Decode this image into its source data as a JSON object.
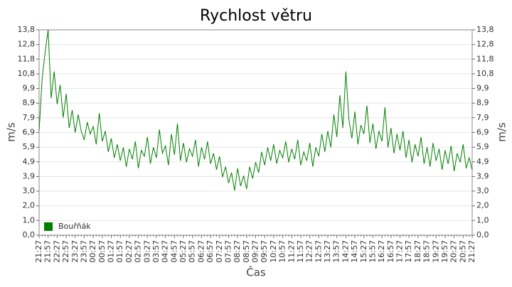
{
  "chart_data": {
    "type": "line",
    "title": "Rychlost větru",
    "x_label": "Čas",
    "y_label": "m/s",
    "ylim": [
      0,
      13.8
    ],
    "yticks": [
      {
        "value": 0,
        "label": "0,0"
      },
      {
        "value": 0.99,
        "label": "1,0"
      },
      {
        "value": 1.97,
        "label": "2,0"
      },
      {
        "value": 2.96,
        "label": "3,0"
      },
      {
        "value": 3.94,
        "label": "3,9"
      },
      {
        "value": 4.93,
        "label": "4,9"
      },
      {
        "value": 5.91,
        "label": "5,9"
      },
      {
        "value": 6.9,
        "label": "6,9"
      },
      {
        "value": 7.89,
        "label": "7,9"
      },
      {
        "value": 8.87,
        "label": "8,9"
      },
      {
        "value": 9.86,
        "label": "9,9"
      },
      {
        "value": 10.84,
        "label": "10,8"
      },
      {
        "value": 11.83,
        "label": "11,8"
      },
      {
        "value": 12.81,
        "label": "12,8"
      },
      {
        "value": 13.8,
        "label": "13,8"
      }
    ],
    "grid": true,
    "legend": "lower left",
    "categories": [
      "21:27",
      null,
      null,
      "21:57",
      null,
      null,
      "22:27",
      null,
      null,
      "22:57",
      null,
      null,
      "23:27",
      null,
      null,
      "23:57",
      null,
      null,
      "00:27",
      null,
      null,
      "00:57",
      null,
      null,
      "01:27",
      null,
      null,
      "01:57",
      null,
      null,
      "02:27",
      null,
      null,
      "02:57",
      null,
      null,
      "03:27",
      null,
      null,
      "03:57",
      null,
      null,
      "04:27",
      null,
      null,
      "04:57",
      null,
      null,
      "05:27",
      null,
      null,
      "05:57",
      null,
      null,
      "06:27",
      null,
      null,
      "06:57",
      null,
      null,
      "07:27",
      null,
      null,
      "07:57",
      null,
      null,
      "08:27",
      null,
      null,
      "08:57",
      null,
      null,
      "09:27",
      null,
      null,
      "09:57",
      null,
      null,
      "10:27",
      null,
      null,
      "10:57",
      null,
      null,
      "11:27",
      null,
      null,
      "11:57",
      null,
      null,
      "12:27",
      null,
      null,
      "12:57",
      null,
      null,
      "13:27",
      null,
      null,
      "13:57",
      null,
      null,
      "14:27",
      null,
      null,
      "14:57",
      null,
      null,
      "15:27",
      null,
      null,
      "15:57",
      null,
      null,
      "16:27",
      null,
      null,
      "16:57",
      null,
      null,
      "17:27",
      null,
      null,
      "17:57",
      null,
      null,
      "18:27",
      null,
      null,
      "18:57",
      null,
      null,
      "19:27",
      null,
      null,
      "19:57",
      null,
      null,
      "20:27",
      null,
      null,
      "20:57",
      null,
      null,
      "21:27"
    ],
    "series": [
      {
        "name": "Bouřňák",
        "color": "#008000",
        "values": [
          7.0,
          10.5,
          12.3,
          13.8,
          9.2,
          11.0,
          8.8,
          10.1,
          7.9,
          9.5,
          7.2,
          8.4,
          6.9,
          8.1,
          7.0,
          6.4,
          7.6,
          6.8,
          7.3,
          6.1,
          8.2,
          6.3,
          7.0,
          5.6,
          6.5,
          5.2,
          6.1,
          5.0,
          5.9,
          4.6,
          5.8,
          5.1,
          6.3,
          4.5,
          5.7,
          5.3,
          6.6,
          4.8,
          5.9,
          5.2,
          7.1,
          5.5,
          6.0,
          4.7,
          6.8,
          5.4,
          7.5,
          5.0,
          6.2,
          4.9,
          5.8,
          5.3,
          6.4,
          4.6,
          5.9,
          5.1,
          6.3,
          4.8,
          5.5,
          4.4,
          5.3,
          3.9,
          4.6,
          3.5,
          4.2,
          3.0,
          4.5,
          3.3,
          4.0,
          3.1,
          4.6,
          3.8,
          4.9,
          4.2,
          5.6,
          4.7,
          5.9,
          5.0,
          6.1,
          4.8,
          5.7,
          5.2,
          6.3,
          4.9,
          5.8,
          5.1,
          6.4,
          4.7,
          5.6,
          5.0,
          6.2,
          4.6,
          5.9,
          5.3,
          6.8,
          5.6,
          7.0,
          5.9,
          8.1,
          6.6,
          9.4,
          7.2,
          11.0,
          7.8,
          6.5,
          8.3,
          6.1,
          7.4,
          6.8,
          8.7,
          6.2,
          7.5,
          5.8,
          7.0,
          6.3,
          8.6,
          5.9,
          7.2,
          5.5,
          6.8,
          5.7,
          7.0,
          5.2,
          6.4,
          4.9,
          6.1,
          5.3,
          6.6,
          4.8,
          5.9,
          4.6,
          6.2,
          5.0,
          5.8,
          4.4,
          5.7,
          4.8,
          6.0,
          4.3,
          5.5,
          4.9,
          6.1,
          4.5,
          5.2,
          4.4
        ]
      }
    ]
  }
}
